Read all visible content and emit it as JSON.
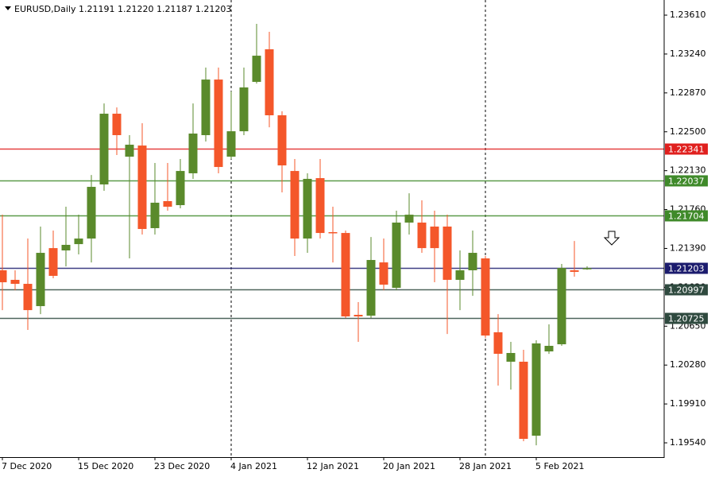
{
  "chart_data": {
    "type": "candlestick",
    "title": "EURUSD,Daily  1.21191 1.21220 1.21187 1.21203",
    "categories": [
      "7 Dec 2020",
      null,
      null,
      null,
      null,
      null,
      "15 Dec 2020",
      null,
      null,
      null,
      null,
      null,
      "23 Dec 2020",
      null,
      null,
      null,
      null,
      null,
      "4 Jan 2021",
      null,
      null,
      null,
      null,
      null,
      "12 Jan 2021",
      null,
      null,
      null,
      null,
      null,
      "20 Jan 2021",
      null,
      null,
      null,
      null,
      null,
      "28 Jan 2021",
      null,
      null,
      null,
      null,
      null,
      "5 Feb 2021",
      null,
      null,
      null,
      null
    ],
    "open": [
      1.21182,
      1.21091,
      1.21053,
      1.20841,
      1.21393,
      1.21371,
      1.21431,
      1.21484,
      1.21999,
      1.22672,
      1.22263,
      1.22369,
      1.21583,
      1.2184,
      1.21802,
      1.22105,
      1.22468,
      1.22997,
      1.22263,
      1.22505,
      1.22975,
      1.23285,
      1.22657,
      1.22127,
      1.21484,
      1.22059,
      1.21545,
      1.21537,
      1.20758,
      1.2075,
      1.21257,
      1.21015,
      1.21636,
      1.21636,
      1.21598,
      1.21598,
      1.21091,
      1.21182,
      1.21295,
      1.20592,
      1.20312,
      1.20312,
      1.19608,
      1.2041,
      1.20478,
      1.21182,
      1.21191
    ],
    "high": [
      1.21711,
      1.21182,
      1.21484,
      1.21598,
      1.2156,
      1.21787,
      1.21711,
      1.22089,
      1.2277,
      1.22732,
      1.22468,
      1.22581,
      1.22203,
      1.22203,
      1.22241,
      1.2277,
      1.23111,
      1.23111,
      1.22884,
      1.23111,
      1.23527,
      1.23451,
      1.22695,
      1.22241,
      1.22105,
      1.22241,
      1.21787,
      1.2156,
      1.20879,
      1.21499,
      1.21484,
      1.21749,
      1.21915,
      1.21848,
      1.21749,
      1.21711,
      1.21371,
      1.2156,
      1.21318,
      1.20765,
      1.20501,
      1.20425,
      1.20516,
      1.20667,
      1.21242,
      1.21461,
      1.2122
    ],
    "low": [
      1.20803,
      1.20992,
      1.20614,
      1.20765,
      1.21106,
      1.21219,
      1.21333,
      1.21257,
      1.21938,
      1.22279,
      1.21295,
      1.21522,
      1.21522,
      1.21749,
      1.21772,
      1.22052,
      1.22407,
      1.22105,
      1.22241,
      1.22468,
      1.22959,
      1.22543,
      1.21923,
      1.21318,
      1.21348,
      1.21484,
      1.21257,
      1.20728,
      1.20501,
      1.20728,
      1.20992,
      1.20992,
      1.21522,
      1.21348,
      1.21068,
      1.20576,
      1.20803,
      1.20939,
      1.20539,
      1.20085,
      1.20047,
      1.19555,
      1.19517,
      1.20387,
      1.20463,
      1.21121,
      1.21187
    ],
    "close": [
      1.21068,
      1.21053,
      1.20803,
      1.21348,
      1.21129,
      1.21424,
      1.21484,
      1.21976,
      1.22672,
      1.22468,
      1.22377,
      1.21575,
      1.21825,
      1.21787,
      1.22127,
      1.22483,
      1.22997,
      1.22165,
      1.22505,
      1.22922,
      1.23224,
      1.22657,
      1.2218,
      1.21484,
      1.22052,
      1.21537,
      1.21537,
      1.20743,
      1.20743,
      1.2128,
      1.21045,
      1.21636,
      1.21711,
      1.21393,
      1.21393,
      1.21091,
      1.21182,
      1.21348,
      1.20561,
      1.20387,
      1.20395,
      1.19578,
      1.20486,
      1.20463,
      1.21204,
      1.21167,
      1.21203
    ],
    "up_color": "#5a8a2b",
    "down_color": "#f4572a",
    "levels": [
      {
        "value": 1.22341,
        "color": "#e0201e"
      },
      {
        "value": 1.22037,
        "color": "#3f8a2a"
      },
      {
        "value": 1.21704,
        "color": "#3f8a2a"
      },
      {
        "value": 1.21203,
        "color": "#1c1c6e"
      },
      {
        "value": 1.20997,
        "color": "#2f4a3f"
      },
      {
        "value": 1.20725,
        "color": "#2f4a3f"
      }
    ],
    "ylim": [
      1.19404,
      1.23754
    ],
    "yticks": [
      {
        "value": 1.2361,
        "label": "1.23610"
      },
      {
        "value": 1.2324,
        "label": "1.23240"
      },
      {
        "value": 1.2287,
        "label": "1.22870"
      },
      {
        "value": 1.225,
        "label": "1.22500"
      },
      {
        "value": 1.2213,
        "label": "1.22130"
      },
      {
        "value": 1.2176,
        "label": "1.21760"
      },
      {
        "value": 1.2139,
        "label": "1.21390"
      },
      {
        "value": 1.2102,
        "label": "1.21020"
      },
      {
        "value": 1.2065,
        "label": "1.20650"
      },
      {
        "value": 1.2028,
        "label": "1.20280"
      },
      {
        "value": 1.1991,
        "label": "1.19910"
      },
      {
        "value": 1.1954,
        "label": "1.19540"
      }
    ]
  }
}
